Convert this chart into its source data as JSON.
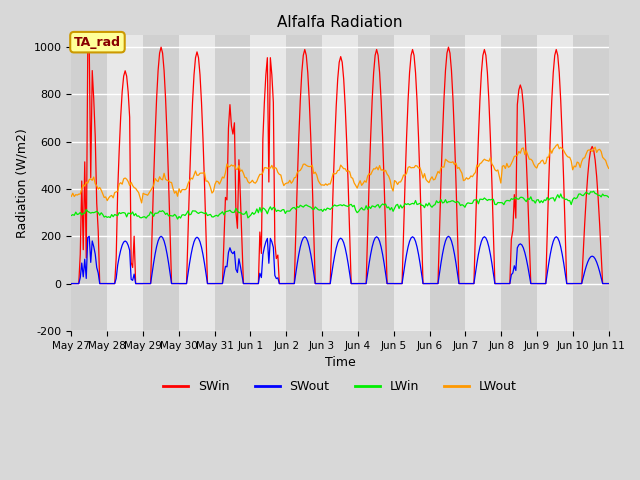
{
  "title": "Alfalfa Radiation",
  "xlabel": "Time",
  "ylabel": "Radiation (W/m2)",
  "ylim": [
    -200,
    1050
  ],
  "background_color": "#d8d8d8",
  "plot_bg_color": "#e8e8e8",
  "xtick_labels": [
    "May 27",
    "May 28",
    "May 29",
    "May 30",
    "May 31",
    "Jun 1",
    "Jun 2",
    "Jun 3",
    "Jun 4",
    "Jun 5",
    "Jun 6",
    "Jun 7",
    "Jun 8",
    "Jun 9",
    "Jun 10",
    "Jun 11"
  ],
  "colors": {
    "SWin": "#ff0000",
    "SWout": "#0000ff",
    "LWin": "#00ee00",
    "LWout": "#ff9900"
  },
  "legend_label": "TA_rad",
  "legend_box_color": "#ffff99",
  "legend_box_edge": "#cc9900",
  "yticks": [
    -200,
    0,
    200,
    400,
    600,
    800,
    1000
  ],
  "grid_color": "#ffffff",
  "alt_band_color": "#d0d0d0"
}
